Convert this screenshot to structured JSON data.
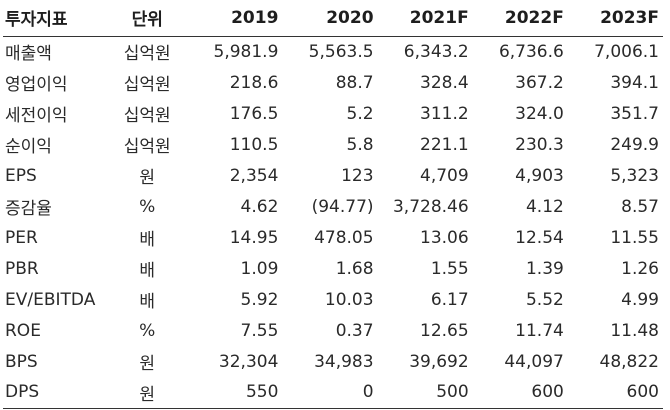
{
  "table": {
    "headers": [
      "투자지표",
      "단위",
      "2019",
      "2020",
      "2021F",
      "2022F",
      "2023F"
    ],
    "rows": [
      {
        "name": "매출액",
        "unit": "십억원",
        "values": [
          "5,981.9",
          "5,563.5",
          "6,343.2",
          "6,736.6",
          "7,006.1"
        ]
      },
      {
        "name": "영업이익",
        "unit": "십억원",
        "values": [
          "218.6",
          "88.7",
          "328.4",
          "367.2",
          "394.1"
        ]
      },
      {
        "name": "세전이익",
        "unit": "십억원",
        "values": [
          "176.5",
          "5.2",
          "311.2",
          "324.0",
          "351.7"
        ]
      },
      {
        "name": "순이익",
        "unit": "십억원",
        "values": [
          "110.5",
          "5.8",
          "221.1",
          "230.3",
          "249.9"
        ]
      },
      {
        "name": "EPS",
        "unit": "원",
        "values": [
          "2,354",
          "123",
          "4,709",
          "4,903",
          "5,323"
        ]
      },
      {
        "name": "증감율",
        "unit": "%",
        "values": [
          "4.62",
          "(94.77)",
          "3,728.46",
          "4.12",
          "8.57"
        ]
      },
      {
        "name": "PER",
        "unit": "배",
        "values": [
          "14.95",
          "478.05",
          "13.06",
          "12.54",
          "11.55"
        ]
      },
      {
        "name": "PBR",
        "unit": "배",
        "values": [
          "1.09",
          "1.68",
          "1.55",
          "1.39",
          "1.26"
        ]
      },
      {
        "name": "EV/EBITDA",
        "unit": "배",
        "values": [
          "5.92",
          "10.03",
          "6.17",
          "5.52",
          "4.99"
        ]
      },
      {
        "name": "ROE",
        "unit": "%",
        "values": [
          "7.55",
          "0.37",
          "12.65",
          "11.74",
          "11.48"
        ]
      },
      {
        "name": "BPS",
        "unit": "원",
        "values": [
          "32,304",
          "34,983",
          "39,692",
          "44,097",
          "48,822"
        ]
      },
      {
        "name": "DPS",
        "unit": "원",
        "values": [
          "550",
          "0",
          "500",
          "600",
          "600"
        ]
      }
    ]
  }
}
